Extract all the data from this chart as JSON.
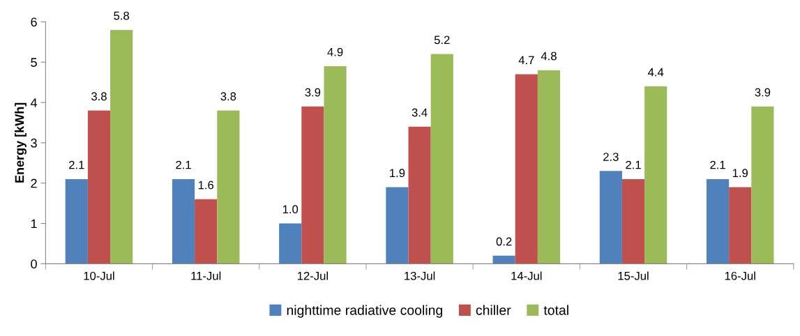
{
  "chart_data": {
    "type": "bar",
    "ylabel": "Energy [kWh]",
    "categories": [
      "10-Jul",
      "11-Jul",
      "12-Jul",
      "13-Jul",
      "14-Jul",
      "15-Jul",
      "16-Jul"
    ],
    "series": [
      {
        "name": "nighttime radiative cooling",
        "color": "#4f81bd",
        "values": [
          2.1,
          2.1,
          1.0,
          1.9,
          0.2,
          2.3,
          2.1
        ],
        "value_labels": [
          "2.1",
          "2.1",
          "1.0",
          "1.9",
          "0.2",
          "2.3",
          "2.1"
        ]
      },
      {
        "name": "chiller",
        "color": "#c0504d",
        "values": [
          3.8,
          1.6,
          3.9,
          3.4,
          4.7,
          2.1,
          1.9
        ],
        "value_labels": [
          "3.8",
          "1.6",
          "3.9",
          "3.4",
          "4.7",
          "2.1",
          "1.9"
        ]
      },
      {
        "name": "total",
        "color": "#9bbb59",
        "values": [
          5.8,
          3.8,
          4.9,
          5.2,
          4.8,
          4.4,
          3.9
        ],
        "value_labels": [
          "5.8",
          "3.8",
          "4.9",
          "5.2",
          "4.8",
          "4.4",
          "3.9"
        ]
      }
    ],
    "ylim": [
      0,
      6
    ],
    "yticks": [
      0,
      1,
      2,
      3,
      4,
      5,
      6
    ],
    "grid": false,
    "legend": "bottom"
  }
}
